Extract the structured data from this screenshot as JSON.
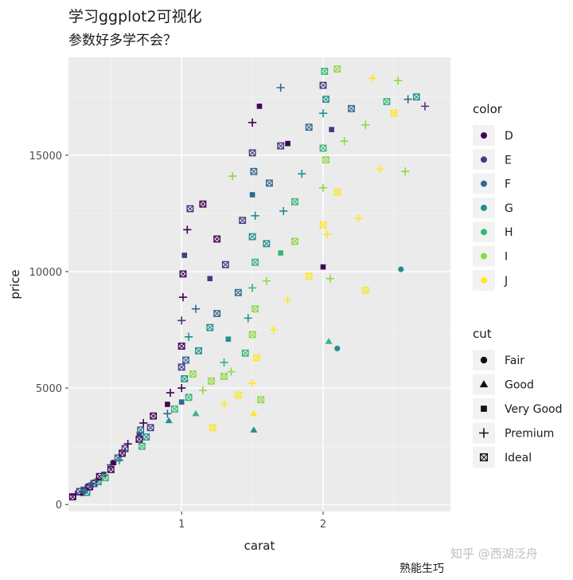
{
  "title": "学习ggplot2可视化",
  "subtitle": "参数好多学不会？",
  "watermark": "知乎 @西湖泛舟",
  "caption": "熟能生巧",
  "chart_data": {
    "type": "scatter",
    "xlabel": "carat",
    "ylabel": "price",
    "xlim": [
      0.2,
      2.9
    ],
    "ylim": [
      -300,
      19200
    ],
    "xticks": [
      1,
      2
    ],
    "yticks": [
      0,
      5000,
      10000,
      15000
    ],
    "panel_background": "#ebebeb",
    "grid": true,
    "legend_position": "right",
    "color_legend": {
      "title": "color",
      "levels": [
        "D",
        "E",
        "F",
        "G",
        "H",
        "I",
        "J"
      ],
      "colors": [
        "#440154",
        "#443a83",
        "#31688e",
        "#21908c",
        "#35b779",
        "#8fd744",
        "#fde725"
      ]
    },
    "shape_legend": {
      "title": "cut",
      "levels": [
        "Fair",
        "Good",
        "Very Good",
        "Premium",
        "Ideal"
      ],
      "shapes": [
        "circle",
        "triangle",
        "square",
        "plus",
        "square-cross"
      ]
    },
    "points": [
      [
        0.23,
        330,
        "D",
        "Ideal"
      ],
      [
        0.25,
        420,
        "D",
        "Premium"
      ],
      [
        0.28,
        560,
        "E",
        "Ideal"
      ],
      [
        0.3,
        480,
        "D",
        "Very Good"
      ],
      [
        0.31,
        620,
        "F",
        "Ideal"
      ],
      [
        0.32,
        700,
        "E",
        "Premium"
      ],
      [
        0.33,
        520,
        "G",
        "Ideal"
      ],
      [
        0.35,
        760,
        "D",
        "Ideal"
      ],
      [
        0.36,
        840,
        "F",
        "Very Good"
      ],
      [
        0.38,
        900,
        "E",
        "Ideal"
      ],
      [
        0.4,
        1050,
        "D",
        "Premium"
      ],
      [
        0.41,
        980,
        "G",
        "Ideal"
      ],
      [
        0.42,
        1200,
        "D",
        "Ideal"
      ],
      [
        0.45,
        1300,
        "E",
        "Very Good"
      ],
      [
        0.46,
        1150,
        "H",
        "Ideal"
      ],
      [
        0.5,
        1500,
        "D",
        "Ideal"
      ],
      [
        0.5,
        1700,
        "E",
        "Premium"
      ],
      [
        0.52,
        1800,
        "D",
        "Very Good"
      ],
      [
        0.55,
        2000,
        "F",
        "Ideal"
      ],
      [
        0.56,
        1900,
        "G",
        "Premium"
      ],
      [
        0.58,
        2200,
        "D",
        "Ideal"
      ],
      [
        0.6,
        2400,
        "E",
        "Ideal"
      ],
      [
        0.62,
        2600,
        "D",
        "Premium"
      ],
      [
        0.7,
        2800,
        "D",
        "Ideal"
      ],
      [
        0.7,
        3000,
        "E",
        "Very Good"
      ],
      [
        0.71,
        3200,
        "F",
        "Ideal"
      ],
      [
        0.72,
        2500,
        "H",
        "Ideal"
      ],
      [
        0.73,
        3500,
        "D",
        "Premium"
      ],
      [
        0.75,
        2900,
        "G",
        "Ideal"
      ],
      [
        0.78,
        3300,
        "E",
        "Ideal"
      ],
      [
        0.8,
        3800,
        "D",
        "Ideal"
      ],
      [
        0.9,
        3900,
        "F",
        "Premium"
      ],
      [
        0.9,
        4300,
        "D",
        "Very Good"
      ],
      [
        0.91,
        3600,
        "G",
        "Good"
      ],
      [
        0.92,
        4800,
        "D",
        "Premium"
      ],
      [
        0.95,
        4100,
        "H",
        "Ideal"
      ],
      [
        1.0,
        5000,
        "D",
        "Premium"
      ],
      [
        1.0,
        5900,
        "E",
        "Ideal"
      ],
      [
        1.0,
        6800,
        "D",
        "Ideal"
      ],
      [
        1.0,
        4400,
        "F",
        "Very Good"
      ],
      [
        1.0,
        7900,
        "E",
        "Premium"
      ],
      [
        1.01,
        8900,
        "D",
        "Premium"
      ],
      [
        1.01,
        9900,
        "D",
        "Ideal"
      ],
      [
        1.02,
        5400,
        "G",
        "Ideal"
      ],
      [
        1.02,
        10700,
        "E",
        "Very Good"
      ],
      [
        1.03,
        6200,
        "F",
        "Ideal"
      ],
      [
        1.04,
        11800,
        "D",
        "Premium"
      ],
      [
        1.05,
        4600,
        "H",
        "Ideal"
      ],
      [
        1.05,
        7200,
        "G",
        "Premium"
      ],
      [
        1.06,
        12700,
        "E",
        "Ideal"
      ],
      [
        1.08,
        5600,
        "I",
        "Ideal"
      ],
      [
        1.1,
        8400,
        "F",
        "Premium"
      ],
      [
        1.1,
        3900,
        "H",
        "Good"
      ],
      [
        1.12,
        6600,
        "G",
        "Ideal"
      ],
      [
        1.15,
        12900,
        "D",
        "Ideal"
      ],
      [
        1.15,
        4900,
        "I",
        "Premium"
      ],
      [
        1.2,
        9700,
        "E",
        "Very Good"
      ],
      [
        1.2,
        7600,
        "G",
        "Ideal"
      ],
      [
        1.21,
        5300,
        "I",
        "Ideal"
      ],
      [
        1.22,
        3300,
        "J",
        "Ideal"
      ],
      [
        1.25,
        11400,
        "D",
        "Ideal"
      ],
      [
        1.25,
        8200,
        "F",
        "Ideal"
      ],
      [
        1.3,
        6100,
        "H",
        "Premium"
      ],
      [
        1.3,
        4300,
        "J",
        "Premium"
      ],
      [
        1.31,
        10300,
        "E",
        "Ideal"
      ],
      [
        1.33,
        7100,
        "G",
        "Very Good"
      ],
      [
        1.35,
        5700,
        "I",
        "Premium"
      ],
      [
        1.4,
        9100,
        "F",
        "Ideal"
      ],
      [
        1.4,
        4700,
        "J",
        "Ideal"
      ],
      [
        1.43,
        12200,
        "E",
        "Ideal"
      ],
      [
        1.45,
        6500,
        "H",
        "Ideal"
      ],
      [
        1.47,
        8000,
        "G",
        "Premium"
      ],
      [
        1.5,
        16400,
        "D",
        "Premium"
      ],
      [
        1.5,
        15100,
        "E",
        "Ideal"
      ],
      [
        1.5,
        13300,
        "F",
        "Very Good"
      ],
      [
        1.5,
        11500,
        "G",
        "Ideal"
      ],
      [
        1.5,
        9300,
        "H",
        "Premium"
      ],
      [
        1.5,
        7300,
        "I",
        "Ideal"
      ],
      [
        1.5,
        5200,
        "J",
        "Premium"
      ],
      [
        1.51,
        3900,
        "J",
        "Good"
      ],
      [
        1.51,
        3200,
        "G",
        "Good"
      ],
      [
        1.51,
        14300,
        "F",
        "Ideal"
      ],
      [
        1.52,
        12400,
        "G",
        "Premium"
      ],
      [
        1.52,
        10400,
        "H",
        "Ideal"
      ],
      [
        1.52,
        8400,
        "I",
        "Ideal"
      ],
      [
        1.53,
        6300,
        "J",
        "Ideal"
      ],
      [
        1.55,
        17100,
        "D",
        "Very Good"
      ],
      [
        1.56,
        4500,
        "I",
        "Ideal"
      ],
      [
        1.6,
        11200,
        "G",
        "Ideal"
      ],
      [
        1.6,
        9600,
        "I",
        "Premium"
      ],
      [
        1.62,
        13800,
        "F",
        "Ideal"
      ],
      [
        1.65,
        7500,
        "J",
        "Premium"
      ],
      [
        1.7,
        15400,
        "E",
        "Ideal"
      ],
      [
        1.7,
        17900,
        "F",
        "Premium"
      ],
      [
        1.7,
        10800,
        "H",
        "Very Good"
      ],
      [
        1.72,
        12600,
        "G",
        "Premium"
      ],
      [
        1.75,
        15500,
        "D",
        "Very Good"
      ],
      [
        1.75,
        8800,
        "J",
        "Premium"
      ],
      [
        1.8,
        13000,
        "H",
        "Ideal"
      ],
      [
        1.8,
        11300,
        "I",
        "Ideal"
      ],
      [
        1.85,
        14200,
        "G",
        "Premium"
      ],
      [
        1.9,
        9800,
        "J",
        "Ideal"
      ],
      [
        1.9,
        16200,
        "F",
        "Ideal"
      ],
      [
        2.0,
        18000,
        "E",
        "Ideal"
      ],
      [
        2.0,
        16800,
        "G",
        "Premium"
      ],
      [
        2.0,
        15300,
        "H",
        "Ideal"
      ],
      [
        2.0,
        13600,
        "I",
        "Premium"
      ],
      [
        2.0,
        12000,
        "J",
        "Ideal"
      ],
      [
        2.0,
        10200,
        "D",
        "Very Good"
      ],
      [
        2.01,
        18600,
        "H",
        "Ideal"
      ],
      [
        2.02,
        17400,
        "G",
        "Ideal"
      ],
      [
        2.02,
        14800,
        "I",
        "Ideal"
      ],
      [
        2.03,
        11600,
        "J",
        "Premium"
      ],
      [
        2.04,
        7000,
        "H",
        "Good"
      ],
      [
        2.05,
        9700,
        "I",
        "Premium"
      ],
      [
        2.06,
        16100,
        "E",
        "Very Good"
      ],
      [
        2.1,
        13400,
        "J",
        "Ideal"
      ],
      [
        2.1,
        18700,
        "I",
        "Ideal"
      ],
      [
        2.1,
        6700,
        "G",
        "Fair"
      ],
      [
        2.15,
        15600,
        "I",
        "Premium"
      ],
      [
        2.2,
        17000,
        "F",
        "Ideal"
      ],
      [
        2.25,
        12300,
        "J",
        "Premium"
      ],
      [
        2.3,
        16300,
        "I",
        "Premium"
      ],
      [
        2.3,
        9200,
        "J",
        "Ideal"
      ],
      [
        2.35,
        18300,
        "J",
        "Premium"
      ],
      [
        2.4,
        14400,
        "J",
        "Premium"
      ],
      [
        2.45,
        17300,
        "H",
        "Ideal"
      ],
      [
        2.5,
        16800,
        "J",
        "Ideal"
      ],
      [
        2.53,
        18200,
        "I",
        "Premium"
      ],
      [
        2.55,
        10100,
        "G",
        "Fair"
      ],
      [
        2.58,
        14300,
        "I",
        "Premium"
      ],
      [
        2.6,
        17400,
        "F",
        "Premium"
      ],
      [
        2.66,
        17500,
        "G",
        "Ideal"
      ],
      [
        2.72,
        17100,
        "E",
        "Premium"
      ],
      [
        1.36,
        14100,
        "I",
        "Premium"
      ],
      [
        1.3,
        5500,
        "I",
        "Ideal"
      ]
    ]
  }
}
